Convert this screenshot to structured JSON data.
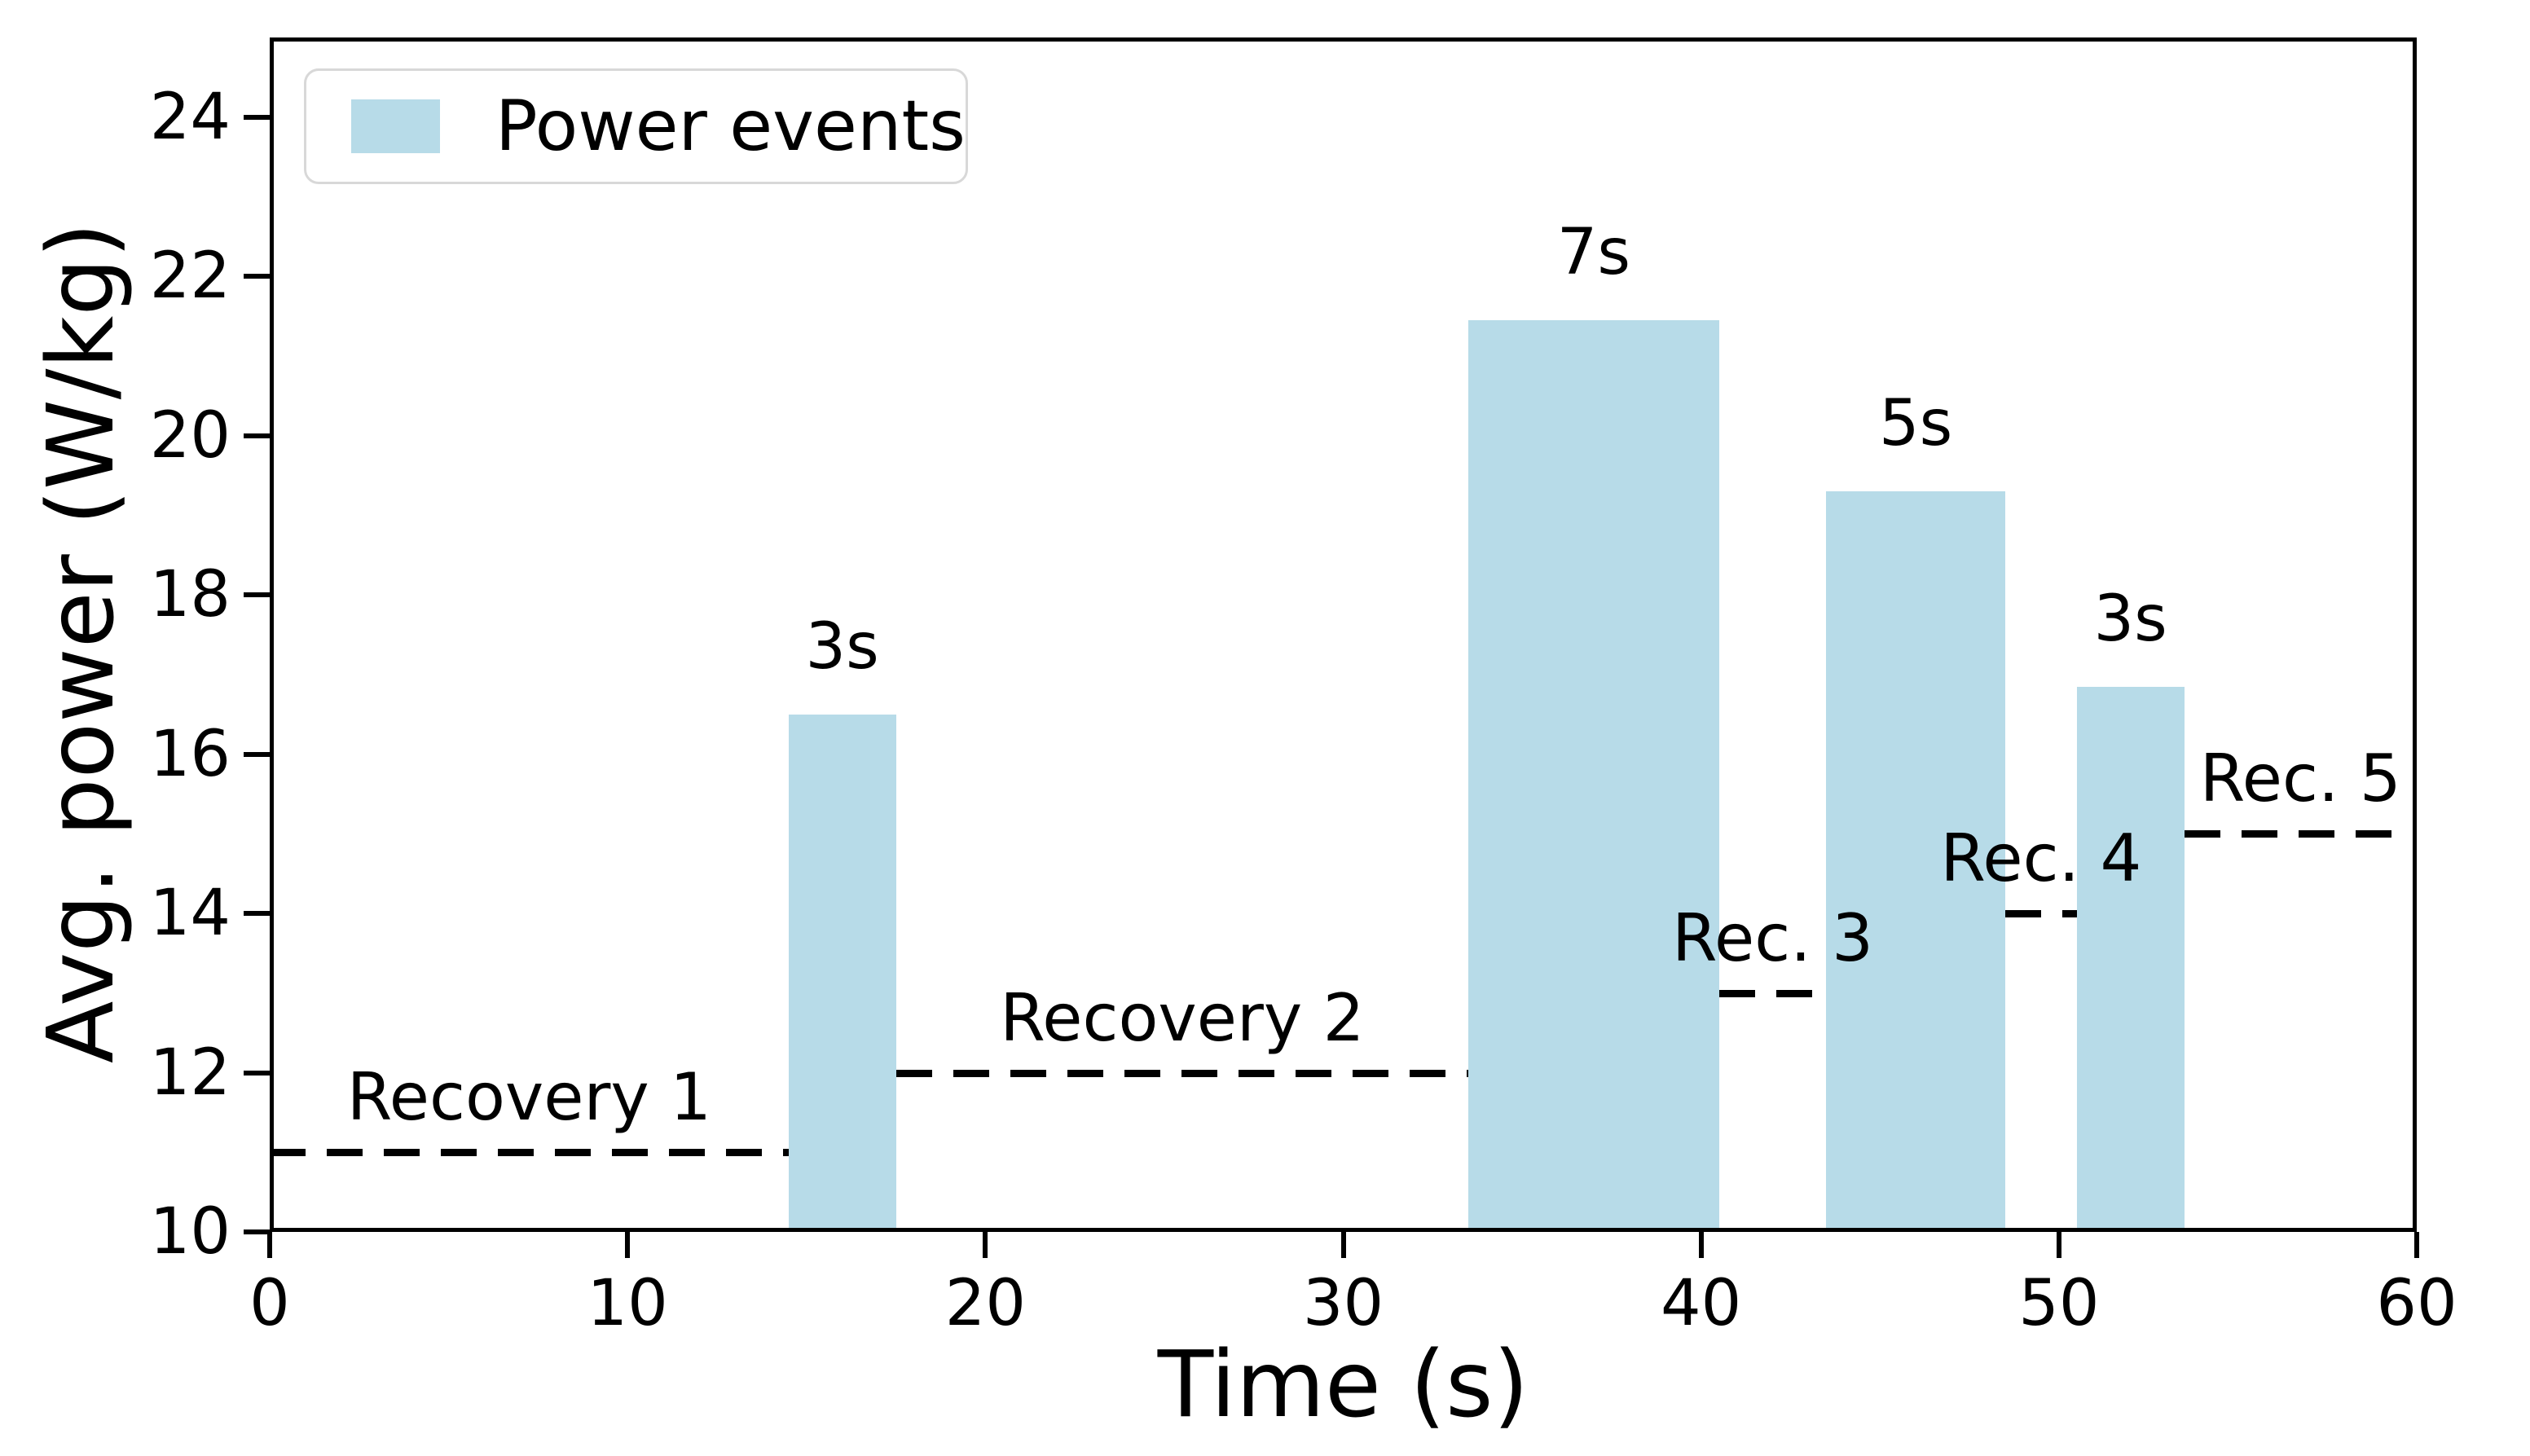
{
  "chart_data": {
    "type": "bar",
    "title": "",
    "xlabel": "Time (s)",
    "ylabel": "Avg. power (W/kg)",
    "xlim": [
      0,
      60
    ],
    "ylim": [
      10,
      25
    ],
    "xticks": [
      0,
      10,
      20,
      30,
      40,
      50,
      60
    ],
    "yticks": [
      10,
      12,
      14,
      16,
      18,
      20,
      22,
      24
    ],
    "grid": false,
    "legend": {
      "position": "upper-left",
      "entries": [
        {
          "label": "Power events",
          "color": "#b7dbe8"
        }
      ]
    },
    "colors": {
      "bar_fill": "#b7dbe8",
      "line": "#000000",
      "text": "#000000",
      "legend_border": "#d8d8d8",
      "background": "#ffffff"
    },
    "power_events": [
      {
        "label": "3s",
        "start_s": 14.5,
        "end_s": 17.5,
        "avg_power_wkg": 16.5
      },
      {
        "label": "7s",
        "start_s": 33.5,
        "end_s": 40.5,
        "avg_power_wkg": 21.45
      },
      {
        "label": "5s",
        "start_s": 43.5,
        "end_s": 48.5,
        "avg_power_wkg": 19.3
      },
      {
        "label": "3s",
        "start_s": 50.5,
        "end_s": 53.5,
        "avg_power_wkg": 16.85
      }
    ],
    "recovery_segments": [
      {
        "label": "Recovery 1",
        "start_s": 0,
        "end_s": 14.5,
        "power_wkg": 11
      },
      {
        "label": "Recovery 2",
        "start_s": 17.5,
        "end_s": 33.5,
        "power_wkg": 12
      },
      {
        "label": "Rec. 3",
        "start_s": 40.5,
        "end_s": 43.5,
        "power_wkg": 13
      },
      {
        "label": "Rec. 4",
        "start_s": 48.5,
        "end_s": 50.5,
        "power_wkg": 14
      },
      {
        "label": "Rec. 5",
        "start_s": 53.5,
        "end_s": 60,
        "power_wkg": 15
      }
    ]
  }
}
